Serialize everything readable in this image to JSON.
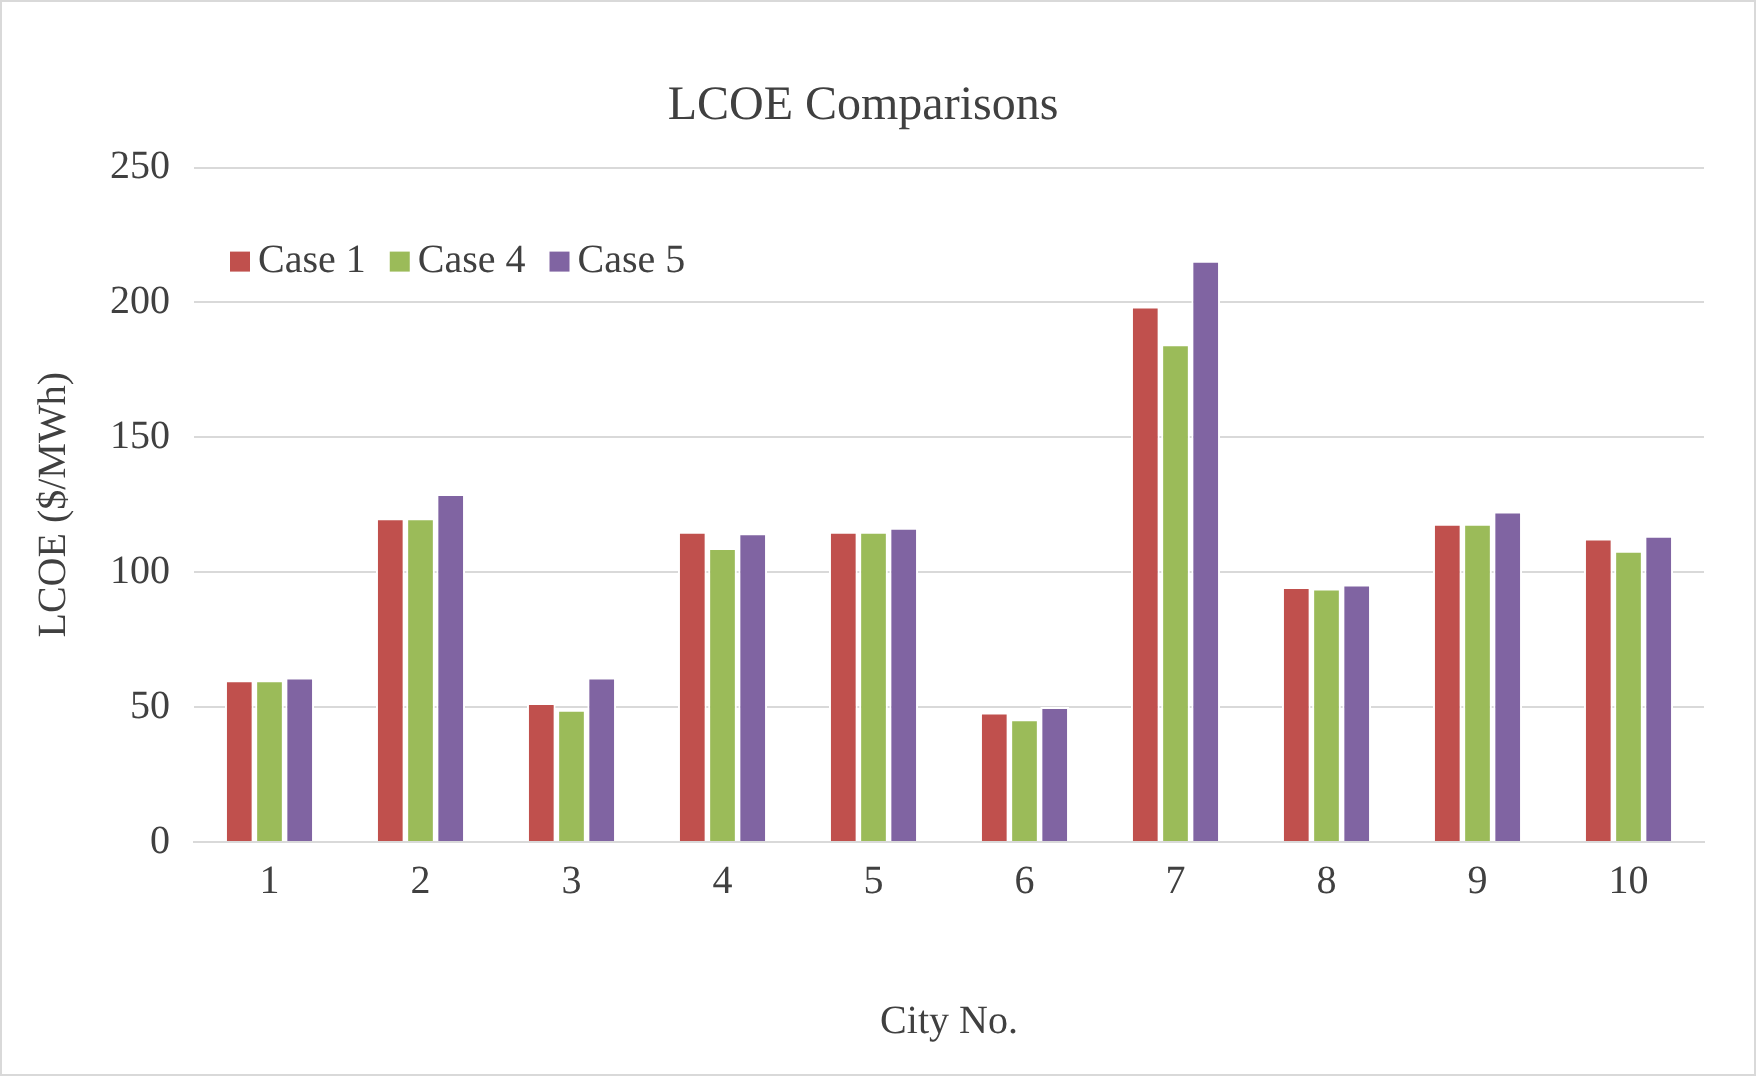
{
  "chart_data": {
    "type": "bar",
    "title": "LCOE Comparisons",
    "xlabel": "City No.",
    "ylabel": "LCOE ($/MWh)",
    "categories": [
      "1",
      "2",
      "3",
      "4",
      "5",
      "6",
      "7",
      "8",
      "9",
      "10"
    ],
    "series": [
      {
        "name": "Case 1",
        "color": "#c0504d",
        "values": [
          60,
          120,
          51.5,
          115,
          115,
          48,
          198.5,
          94.5,
          118,
          112.5
        ]
      },
      {
        "name": "Case 4",
        "color": "#9bbb59",
        "values": [
          60,
          120,
          49,
          109,
          115,
          45.5,
          184.5,
          94,
          118,
          108
        ]
      },
      {
        "name": "Case 5",
        "color": "#8064a2",
        "values": [
          61,
          129,
          61,
          114.5,
          116.5,
          50,
          215.5,
          95.5,
          122.5,
          113.5
        ]
      }
    ],
    "ylim": [
      0,
      250
    ],
    "yticks": [
      0,
      50,
      100,
      150,
      200,
      250
    ],
    "grid": "y",
    "legend": "top left"
  }
}
